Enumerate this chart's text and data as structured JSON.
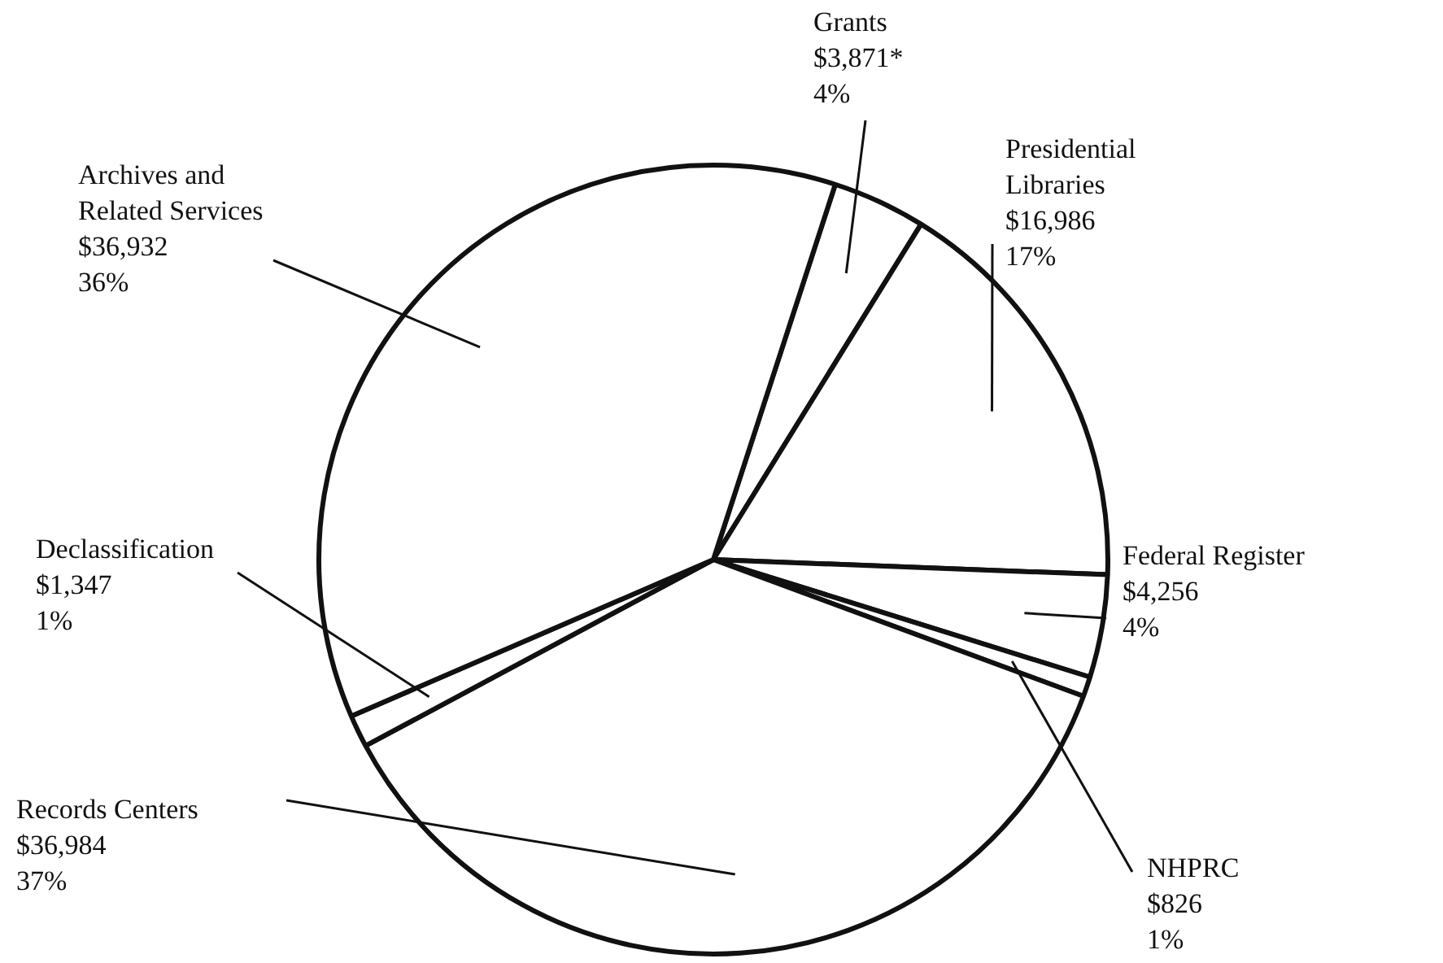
{
  "chart_data": {
    "type": "pie",
    "categories": [
      "Grants",
      "Presidential Libraries",
      "Federal Register",
      "NHPRC",
      "Records Centers",
      "Declassification",
      "Archives and Related Services"
    ],
    "values": [
      3871,
      16986,
      4256,
      826,
      36984,
      1347,
      36932
    ],
    "colors": [
      "#ffffff",
      "#ffffff",
      "#ffffff",
      "#ffffff",
      "#ffffff",
      "#ffffff",
      "#ffffff"
    ],
    "value_labels": [
      "$3,871*\n4%",
      "$16,986\n17%",
      "$4,256\n4%",
      "$826\n1%",
      "$36,984\n37%",
      "$1,347\n1%",
      "$36,932\n36%"
    ]
  }
}
